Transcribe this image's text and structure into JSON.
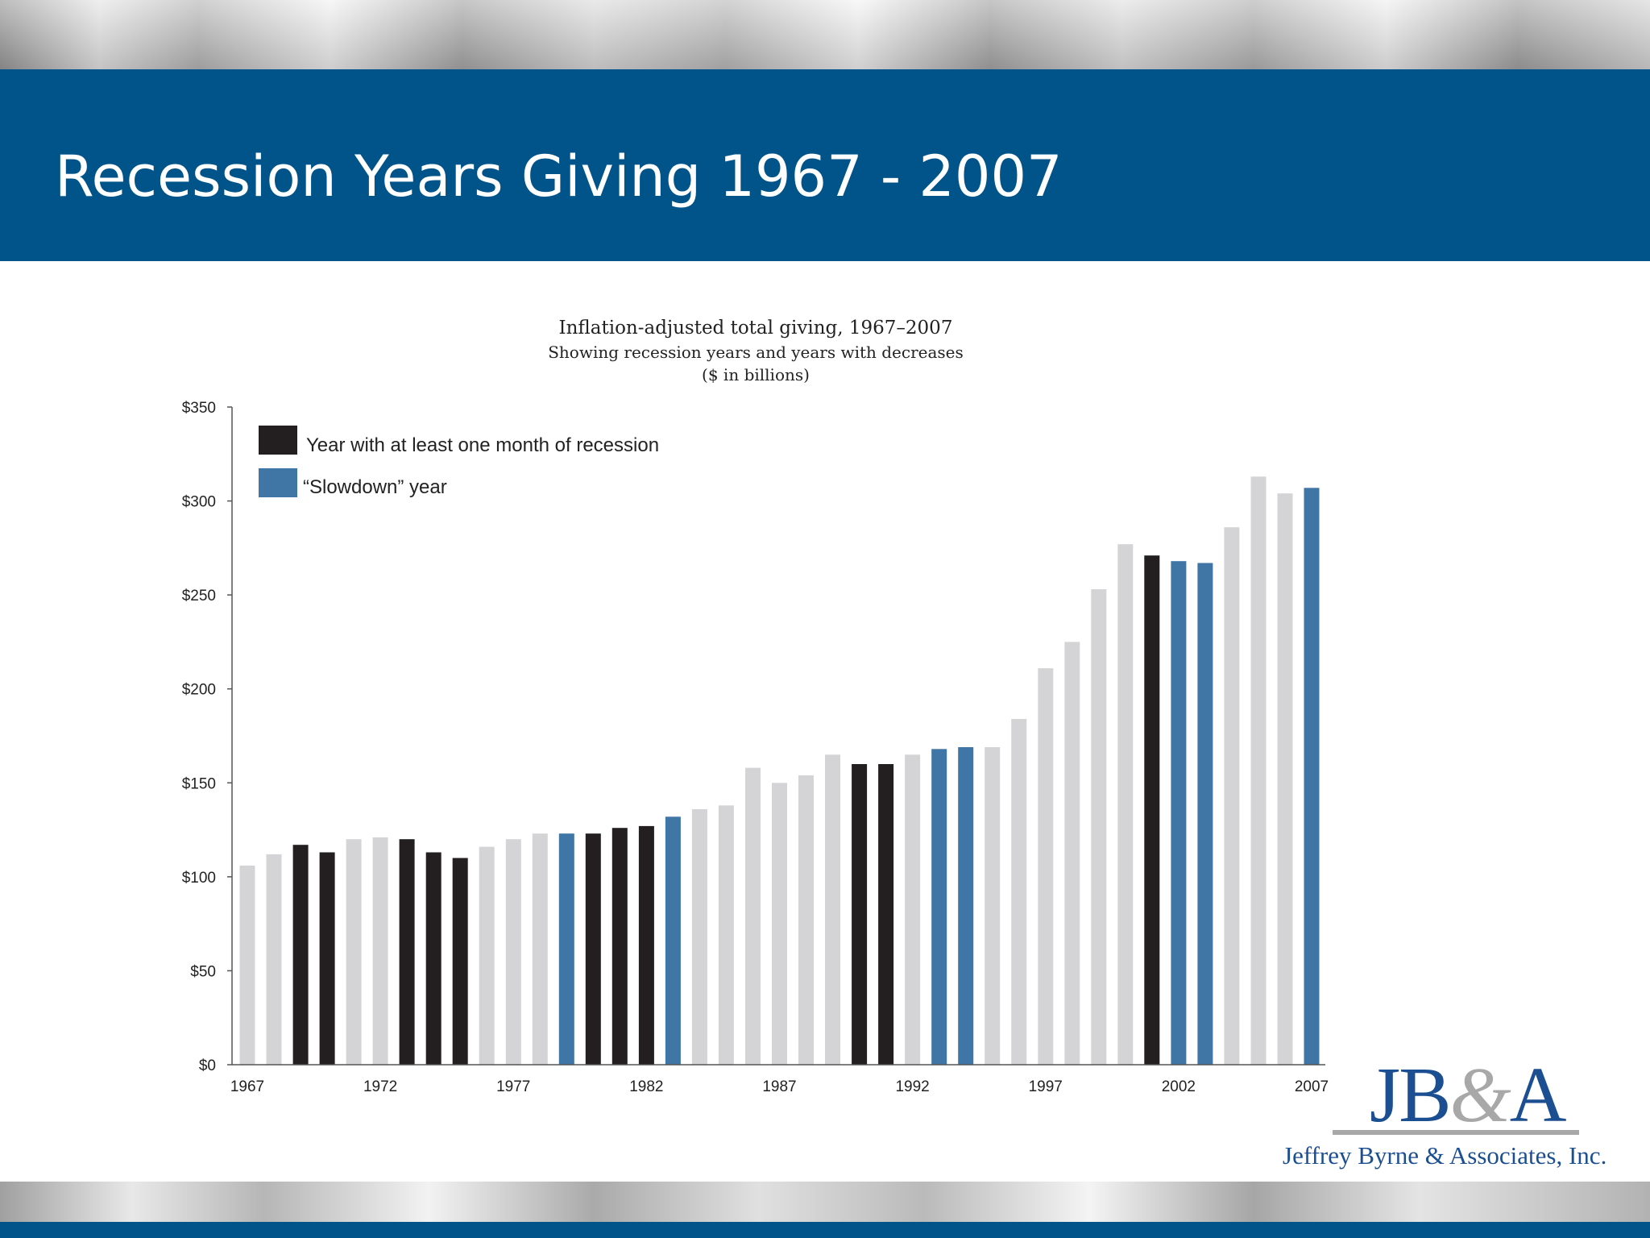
{
  "slide": {
    "title": "Recession Years Giving 1967 - 2007"
  },
  "logo": {
    "mark_left": "JB",
    "mark_amp": "&",
    "mark_right": "A",
    "company": "Jeffrey Byrne & Associates, Inc."
  },
  "colors": {
    "band": "#00548a",
    "recession": "#231f20",
    "slowdown": "#3f76a6",
    "normal": "#d4d4d6",
    "logo": "#1c4f91"
  },
  "chart_data": {
    "type": "bar",
    "title": "Inflation-adjusted total giving, 1967–2007",
    "subtitle": "Showing recession years and years with decreases",
    "units": "($ in billions)",
    "ylim": [
      0,
      350
    ],
    "y_ticks": [
      0,
      50,
      100,
      150,
      200,
      250,
      300,
      350
    ],
    "y_tick_labels": [
      "$0",
      "$50",
      "$100",
      "$150",
      "$200",
      "$250",
      "$300",
      "$350"
    ],
    "x_tick_labels": [
      "1967",
      "1972",
      "1977",
      "1982",
      "1987",
      "1992",
      "1997",
      "2002",
      "2007"
    ],
    "legend_position": "top-left",
    "legend": [
      {
        "key": "recession",
        "label": "Year with at least one month of recession"
      },
      {
        "key": "slowdown",
        "label": "“Slowdown” year"
      }
    ],
    "categories": [
      "1967",
      "1968",
      "1969",
      "1970",
      "1971",
      "1972",
      "1973",
      "1974",
      "1975",
      "1976",
      "1977",
      "1978",
      "1979",
      "1980",
      "1981",
      "1982",
      "1983",
      "1984",
      "1985",
      "1986",
      "1987",
      "1988",
      "1989",
      "1990",
      "1991",
      "1992",
      "1993",
      "1994",
      "1995",
      "1996",
      "1997",
      "1998",
      "1999",
      "2000",
      "2001",
      "2002",
      "2003",
      "2004",
      "2005",
      "2006",
      "2007"
    ],
    "values": [
      106,
      112,
      117,
      113,
      120,
      121,
      120,
      113,
      110,
      116,
      120,
      123,
      123,
      123,
      126,
      127,
      132,
      136,
      138,
      158,
      150,
      154,
      165,
      160,
      160,
      165,
      168,
      169,
      169,
      184,
      211,
      225,
      253,
      277,
      271,
      268,
      267,
      286,
      313,
      304,
      307
    ],
    "bar_type": [
      "normal",
      "normal",
      "recession",
      "recession",
      "normal",
      "normal",
      "recession",
      "recession",
      "recession",
      "normal",
      "normal",
      "normal",
      "slowdown",
      "recession",
      "recession",
      "recession",
      "slowdown",
      "normal",
      "normal",
      "normal",
      "normal",
      "normal",
      "normal",
      "recession",
      "recession",
      "normal",
      "slowdown",
      "slowdown",
      "normal",
      "normal",
      "normal",
      "normal",
      "normal",
      "normal",
      "recession",
      "slowdown",
      "slowdown",
      "normal",
      "normal",
      "normal",
      "slowdown"
    ]
  }
}
